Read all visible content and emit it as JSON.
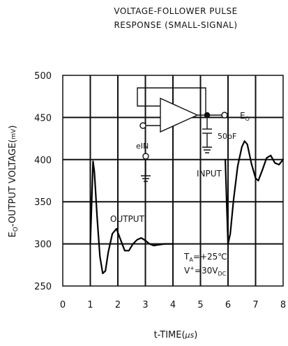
{
  "chart_data": {
    "type": "line",
    "title_line1": "VOLTAGE-FOLLOWER PULSE",
    "title_line2": "RESPONSE (SMALL-SIGNAL)",
    "xlabel_main": "t-TIME(",
    "xlabel_unit": "μs",
    "xlabel_close": ")",
    "ylabel_main": "E",
    "ylabel_sub": "O",
    "ylabel_rest": "-OUTPUT VOLTAGE(",
    "ylabel_unit": "mV",
    "ylabel_close": ")",
    "x_ticks": [
      "0",
      "1",
      "2",
      "3",
      "4",
      "5",
      "6",
      "7",
      "8"
    ],
    "y_ticks": [
      "250",
      "300",
      "350",
      "400",
      "450",
      "500"
    ],
    "xlim": [
      0,
      8
    ],
    "ylim": [
      250,
      500
    ],
    "grid": true,
    "annotations": {
      "input": "INPUT",
      "output": "OUTPUT",
      "ein": "eIN",
      "eo_main": "E",
      "eo_sub": "O",
      "cap": "50pF",
      "ta_main": "T",
      "ta_sub": "A",
      "ta_rest": "=+25℃",
      "v_main": "V",
      "v_sup": "+",
      "v_rest": "=30V",
      "v_sub": "DC"
    },
    "series": [
      {
        "role": "output",
        "color": "#000000",
        "points": [
          [
            1.0,
            300
          ],
          [
            1.05,
            350
          ],
          [
            1.1,
            398
          ],
          [
            1.15,
            385
          ],
          [
            1.25,
            330
          ],
          [
            1.35,
            285
          ],
          [
            1.45,
            265
          ],
          [
            1.55,
            268
          ],
          [
            1.65,
            290
          ],
          [
            1.8,
            312
          ],
          [
            1.95,
            318
          ],
          [
            2.1,
            305
          ],
          [
            2.25,
            292
          ],
          [
            2.4,
            292
          ],
          [
            2.55,
            300
          ],
          [
            2.7,
            305
          ],
          [
            2.85,
            307
          ],
          [
            3.0,
            304
          ],
          [
            3.15,
            300
          ],
          [
            3.3,
            298
          ],
          [
            3.5,
            299
          ],
          [
            3.7,
            300
          ],
          [
            4.0,
            300
          ]
        ]
      },
      {
        "role": "input",
        "color": "#000000",
        "points": [
          [
            5.9,
            400
          ],
          [
            5.95,
            350
          ],
          [
            6.0,
            300
          ],
          [
            6.08,
            312
          ],
          [
            6.2,
            352
          ],
          [
            6.35,
            392
          ],
          [
            6.5,
            415
          ],
          [
            6.6,
            422
          ],
          [
            6.7,
            418
          ],
          [
            6.85,
            395
          ],
          [
            7.0,
            378
          ],
          [
            7.1,
            375
          ],
          [
            7.25,
            388
          ],
          [
            7.4,
            402
          ],
          [
            7.55,
            405
          ],
          [
            7.7,
            396
          ],
          [
            7.85,
            394
          ],
          [
            8.0,
            400
          ]
        ]
      }
    ]
  }
}
